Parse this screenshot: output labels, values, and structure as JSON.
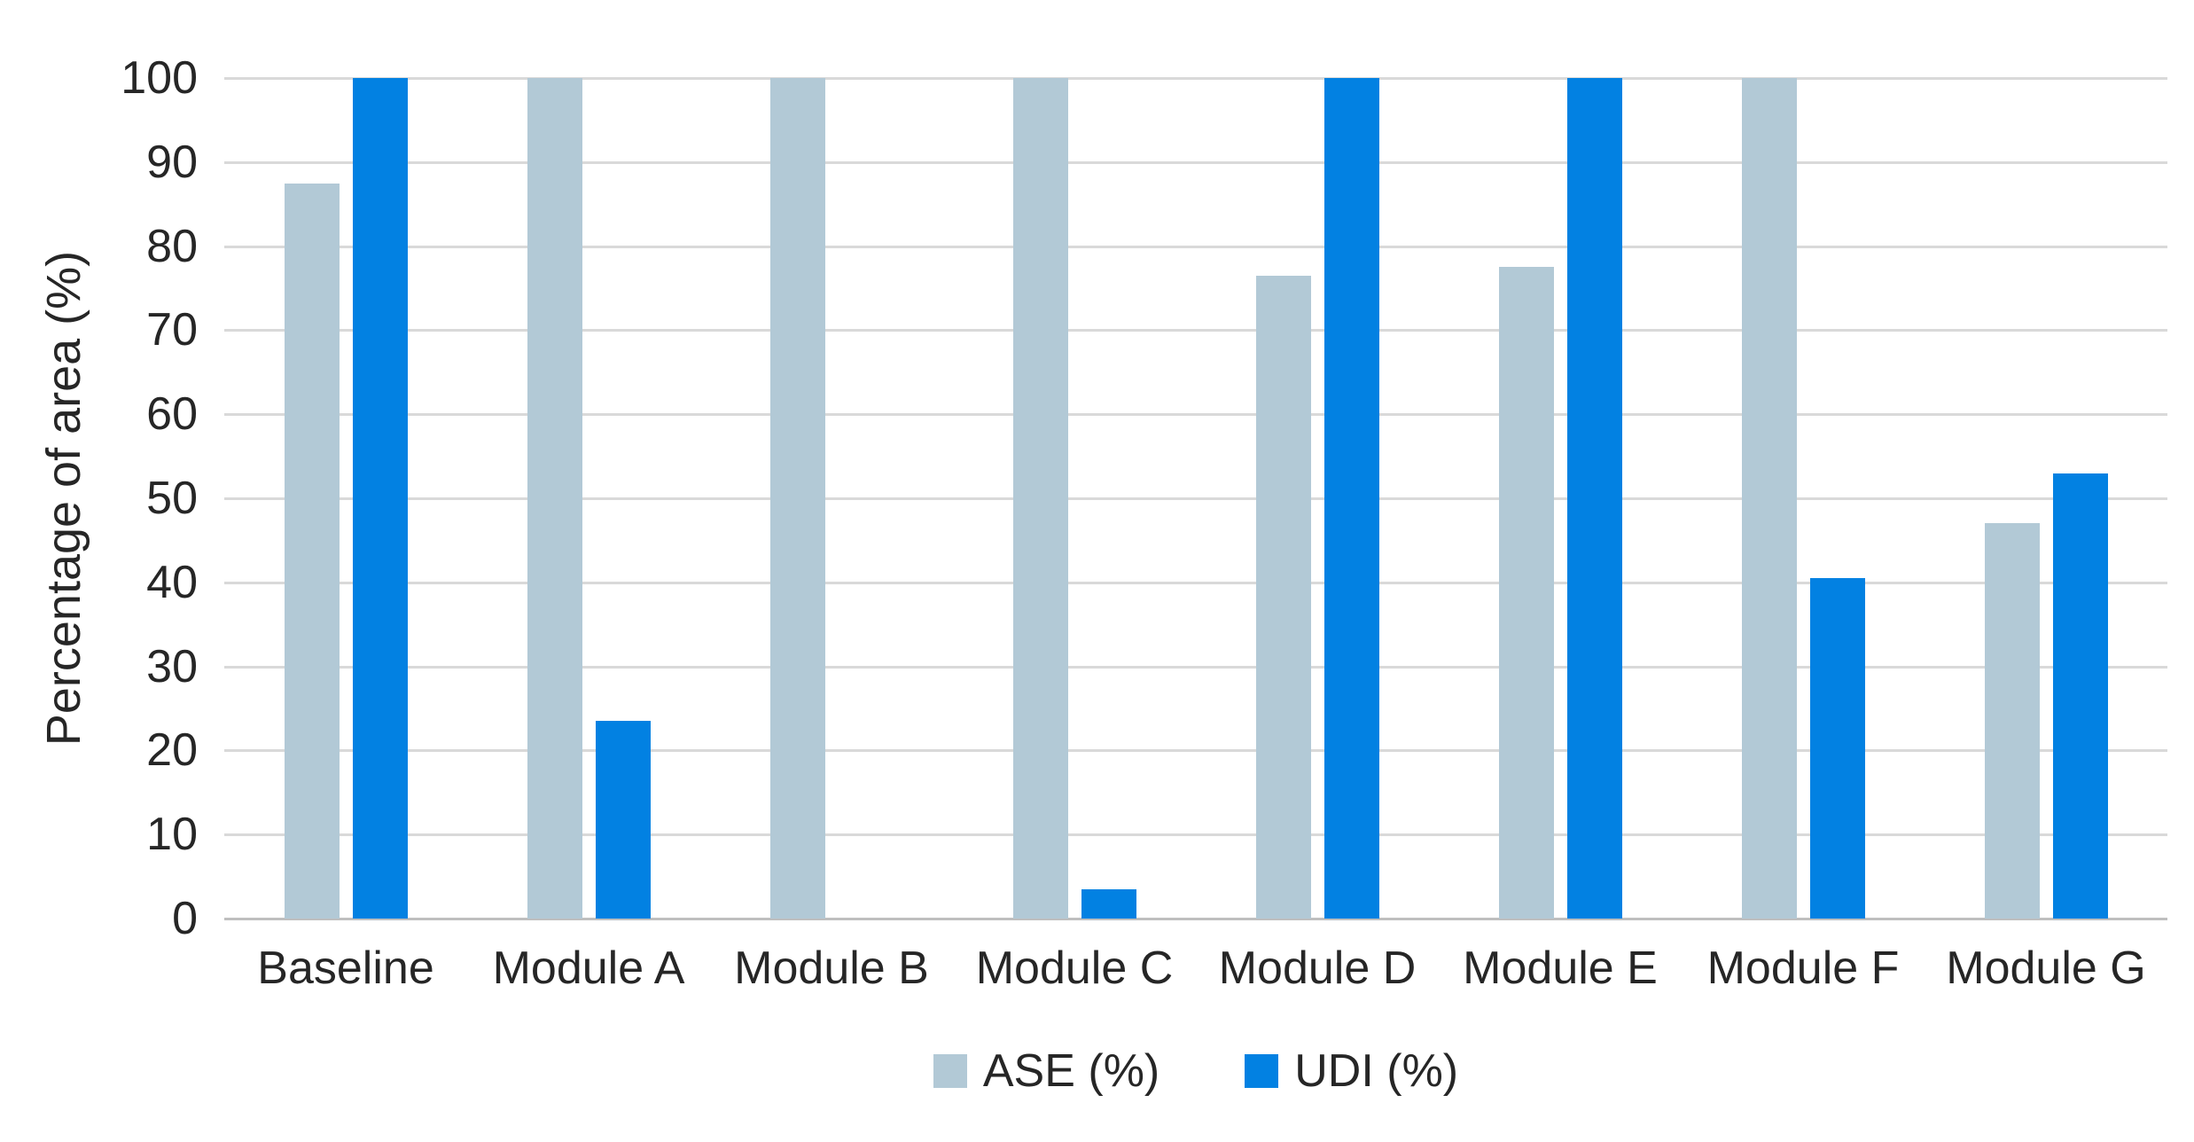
{
  "chart_data": {
    "type": "bar",
    "title": "",
    "xlabel": "",
    "ylabel": "Percentage of area (%)",
    "categories": [
      "Baseline",
      "Module A",
      "Module B",
      "Module C",
      "Module D",
      "Module E",
      "Module F",
      "Module G"
    ],
    "series": [
      {
        "name": "ASE (%)",
        "color": "#B2C9D6",
        "values": [
          87.5,
          100,
          100,
          100,
          76.5,
          77.5,
          100,
          47
        ]
      },
      {
        "name": "UDI (%)",
        "color": "#0281E2",
        "values": [
          100,
          23.5,
          0,
          3.5,
          100,
          100,
          40.5,
          53
        ]
      }
    ],
    "ylim": [
      0,
      100
    ],
    "ytick_step": 10,
    "yticks": [
      0,
      10,
      20,
      30,
      40,
      50,
      60,
      70,
      80,
      90,
      100
    ],
    "grid": "horizontal",
    "legend_position": "bottom-center",
    "colors": {
      "gridline": "#D9D9D9",
      "axis_line": "#BFBFBF",
      "text": "#262626",
      "background": "#FFFFFF"
    }
  }
}
